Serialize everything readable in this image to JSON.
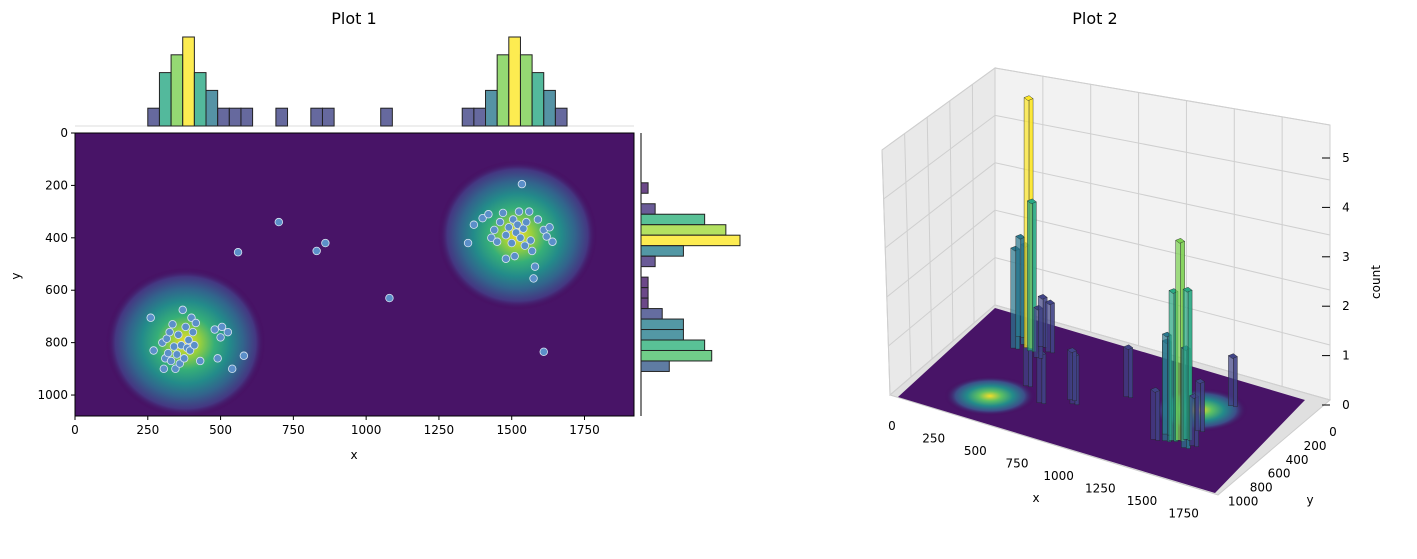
{
  "chart_data": [
    {
      "type": "scatter",
      "title": "Plot 1",
      "xlabel": "x",
      "ylabel": "y",
      "xlim": [
        0,
        1920
      ],
      "ylim": [
        1080,
        0
      ],
      "y_inverted": true,
      "x_ticks": [
        0,
        250,
        500,
        750,
        1000,
        1250,
        1500,
        1750
      ],
      "y_ticks": [
        0,
        200,
        400,
        600,
        800,
        1000
      ],
      "kde_centers": [
        {
          "x": 380,
          "y": 800,
          "weight": 1.0
        },
        {
          "x": 1520,
          "y": 390,
          "weight": 1.0
        }
      ],
      "points": [
        [
          260,
          705
        ],
        [
          270,
          830
        ],
        [
          300,
          800
        ],
        [
          305,
          900
        ],
        [
          310,
          860
        ],
        [
          315,
          785
        ],
        [
          320,
          840
        ],
        [
          325,
          760
        ],
        [
          330,
          870
        ],
        [
          335,
          730
        ],
        [
          340,
          815
        ],
        [
          345,
          900
        ],
        [
          350,
          845
        ],
        [
          355,
          770
        ],
        [
          360,
          880
        ],
        [
          365,
          810
        ],
        [
          370,
          675
        ],
        [
          375,
          860
        ],
        [
          380,
          740
        ],
        [
          385,
          820
        ],
        [
          390,
          790
        ],
        [
          395,
          830
        ],
        [
          400,
          705
        ],
        [
          405,
          760
        ],
        [
          410,
          810
        ],
        [
          415,
          725
        ],
        [
          430,
          870
        ],
        [
          480,
          750
        ],
        [
          490,
          860
        ],
        [
          500,
          780
        ],
        [
          505,
          740
        ],
        [
          525,
          760
        ],
        [
          540,
          900
        ],
        [
          580,
          850
        ],
        [
          560,
          455
        ],
        [
          700,
          340
        ],
        [
          830,
          450
        ],
        [
          860,
          420
        ],
        [
          1080,
          630
        ],
        [
          1350,
          420
        ],
        [
          1370,
          350
        ],
        [
          1400,
          325
        ],
        [
          1420,
          310
        ],
        [
          1430,
          400
        ],
        [
          1440,
          370
        ],
        [
          1450,
          415
        ],
        [
          1460,
          340
        ],
        [
          1470,
          305
        ],
        [
          1480,
          390
        ],
        [
          1490,
          360
        ],
        [
          1500,
          420
        ],
        [
          1505,
          330
        ],
        [
          1510,
          470
        ],
        [
          1515,
          380
        ],
        [
          1520,
          350
        ],
        [
          1525,
          300
        ],
        [
          1530,
          400
        ],
        [
          1535,
          195
        ],
        [
          1540,
          365
        ],
        [
          1545,
          430
        ],
        [
          1550,
          340
        ],
        [
          1560,
          300
        ],
        [
          1565,
          410
        ],
        [
          1570,
          450
        ],
        [
          1580,
          510
        ],
        [
          1575,
          555
        ],
        [
          1590,
          330
        ],
        [
          1610,
          370
        ],
        [
          1620,
          395
        ],
        [
          1630,
          360
        ],
        [
          1640,
          415
        ],
        [
          1610,
          835
        ],
        [
          1480,
          480
        ]
      ],
      "x_hist": {
        "bins": [
          250,
          290,
          330,
          370,
          410,
          450,
          490,
          530,
          570,
          610,
          650,
          690,
          730,
          770,
          810,
          850,
          890,
          930,
          970,
          1010,
          1050,
          1090,
          1130,
          1170,
          1210,
          1250,
          1290,
          1330,
          1370,
          1410,
          1450,
          1490,
          1530,
          1570,
          1610,
          1650,
          1690
        ],
        "counts": [
          1,
          3,
          4,
          5,
          3,
          2,
          1,
          1,
          1,
          0,
          0,
          1,
          0,
          0,
          1,
          1,
          0,
          0,
          0,
          0,
          1,
          0,
          0,
          0,
          0,
          0,
          0,
          1,
          1,
          2,
          4,
          5,
          4,
          3,
          2,
          1
        ]
      },
      "y_hist": {
        "bins": [
          150,
          190,
          230,
          270,
          310,
          350,
          390,
          430,
          470,
          510,
          550,
          590,
          630,
          670,
          710,
          750,
          790,
          830,
          870,
          910
        ],
        "counts": [
          0,
          1,
          0,
          2,
          9,
          12,
          14,
          6,
          2,
          0,
          1,
          1,
          1,
          3,
          6,
          6,
          9,
          10,
          4
        ]
      },
      "colormap": "viridis"
    },
    {
      "type": "bar3d",
      "title": "Plot 2",
      "xlabel": "x",
      "ylabel": "y",
      "zlabel": "count",
      "x_ticks": [
        0,
        250,
        500,
        750,
        1000,
        1250,
        1500,
        1750
      ],
      "y_ticks": [
        0,
        200,
        400,
        600,
        800,
        1000
      ],
      "z_ticks": [
        0,
        1,
        2,
        3,
        4,
        5
      ],
      "xlim": [
        0,
        1920
      ],
      "ylim": [
        0,
        1080
      ],
      "zlim": [
        0,
        5
      ],
      "bars": [
        {
          "x": 390,
          "y": 800,
          "z": 5
        },
        {
          "x": 360,
          "y": 820,
          "z": 2
        },
        {
          "x": 420,
          "y": 780,
          "z": 3
        },
        {
          "x": 330,
          "y": 760,
          "z": 2
        },
        {
          "x": 450,
          "y": 850,
          "z": 1
        },
        {
          "x": 300,
          "y": 880,
          "z": 2
        },
        {
          "x": 480,
          "y": 740,
          "z": 1
        },
        {
          "x": 510,
          "y": 820,
          "z": 1
        },
        {
          "x": 700,
          "y": 340,
          "z": 1
        },
        {
          "x": 860,
          "y": 420,
          "z": 1
        },
        {
          "x": 830,
          "y": 450,
          "z": 1
        },
        {
          "x": 560,
          "y": 455,
          "z": 1
        },
        {
          "x": 1080,
          "y": 630,
          "z": 1
        },
        {
          "x": 1520,
          "y": 380,
          "z": 4
        },
        {
          "x": 1490,
          "y": 360,
          "z": 3
        },
        {
          "x": 1550,
          "y": 410,
          "z": 3
        },
        {
          "x": 1460,
          "y": 340,
          "z": 2
        },
        {
          "x": 1580,
          "y": 330,
          "z": 2
        },
        {
          "x": 1430,
          "y": 400,
          "z": 2
        },
        {
          "x": 1610,
          "y": 370,
          "z": 1
        },
        {
          "x": 1400,
          "y": 320,
          "z": 1
        },
        {
          "x": 1570,
          "y": 520,
          "z": 1
        },
        {
          "x": 1610,
          "y": 835,
          "z": 1
        }
      ],
      "colormap": "viridis"
    }
  ]
}
